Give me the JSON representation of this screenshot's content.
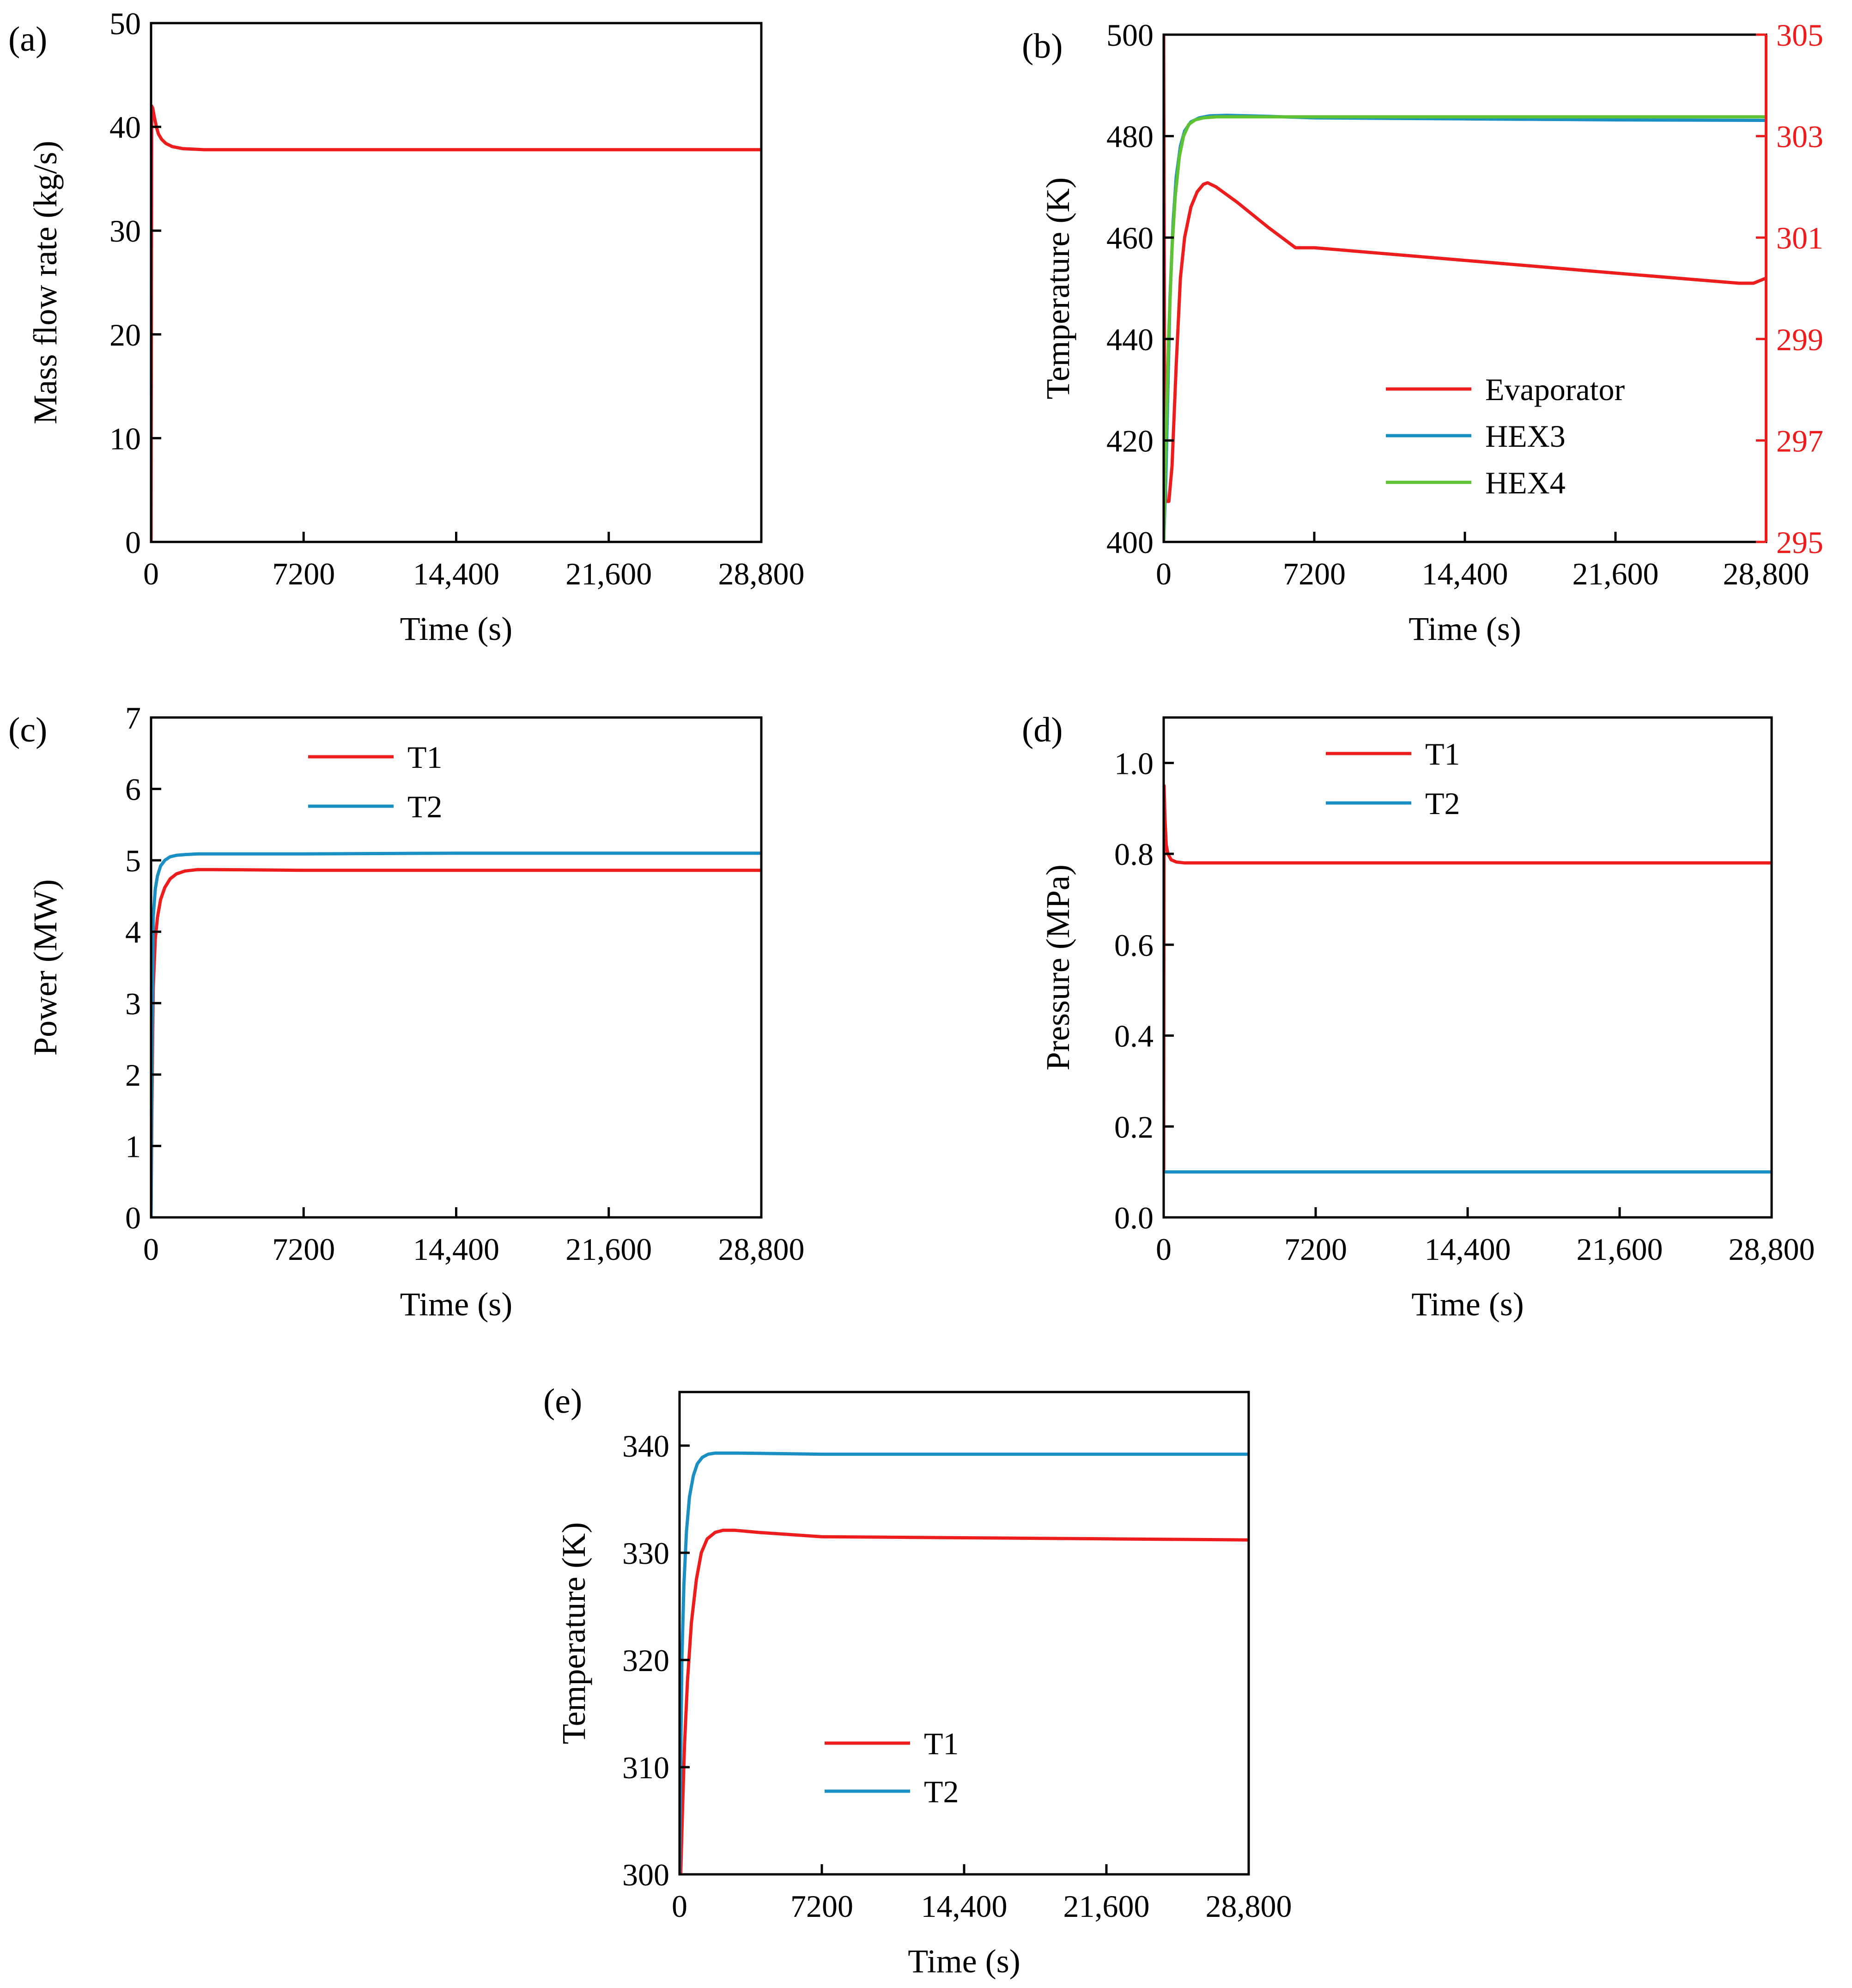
{
  "colors": {
    "red": "#ee1d1d",
    "blue": "#1a8fc4",
    "green": "#5ec233"
  },
  "chart_data": [
    {
      "panel": "(a)",
      "type": "line",
      "xlabel": "Time (s)",
      "ylabel": "Mass flow rate (kg/s)",
      "xlim": [
        0,
        28800
      ],
      "ylim": [
        0,
        50
      ],
      "xticks": [
        0,
        7200,
        14400,
        21600,
        28800
      ],
      "xtick_labels": [
        "0",
        "7200",
        "14,400",
        "21,600",
        "28,800"
      ],
      "yticks": [
        0,
        10,
        20,
        30,
        40,
        50
      ],
      "ytick_labels": [
        "0",
        "10",
        "20",
        "30",
        "40",
        "50"
      ],
      "grid": false,
      "legend": null,
      "series": [
        {
          "color": "#ee1d1d",
          "axis": "left",
          "x": [
            0,
            30,
            80,
            150,
            250,
            350,
            500,
            700,
            1000,
            1500,
            2500,
            4000,
            7200,
            14400,
            21600,
            28800
          ],
          "y": [
            0,
            42.0,
            41.8,
            41.0,
            40.0,
            39.3,
            38.8,
            38.4,
            38.1,
            37.9,
            37.8,
            37.8,
            37.8,
            37.8,
            37.8,
            37.8
          ]
        }
      ]
    },
    {
      "panel": "(b)",
      "type": "line",
      "xlabel": "Time (s)",
      "ylabel": "Temperature (K)",
      "xlim": [
        0,
        28800
      ],
      "ylim": [
        400,
        500
      ],
      "y2lim": [
        295,
        305
      ],
      "y2_color": "#ee1d1d",
      "xticks": [
        0,
        7200,
        14400,
        21600,
        28800
      ],
      "xtick_labels": [
        "0",
        "7200",
        "14,400",
        "21,600",
        "28,800"
      ],
      "yticks": [
        400,
        420,
        440,
        460,
        480,
        500
      ],
      "ytick_labels": [
        "400",
        "420",
        "440",
        "460",
        "480",
        "500"
      ],
      "y2ticks": [
        295,
        297,
        299,
        301,
        303,
        305
      ],
      "y2tick_labels": [
        "295",
        "297",
        "299",
        "301",
        "303",
        "305"
      ],
      "grid": false,
      "legend": "bottom-right",
      "series": [
        {
          "name": "Evaporator",
          "color": "#ee1d1d",
          "axis": "right",
          "x": [
            0,
            50,
            100,
            150,
            250,
            400,
            600,
            800,
            1000,
            1300,
            1600,
            1900,
            2100,
            2500,
            3500,
            5000,
            6300,
            7200,
            14400,
            21600,
            27500,
            28200,
            28800
          ],
          "y": [
            305.0,
            297.0,
            295.8,
            295.8,
            295.8,
            296.5,
            298.5,
            300.2,
            301.0,
            301.6,
            301.9,
            302.05,
            302.08,
            302.0,
            301.7,
            301.2,
            300.8,
            300.8,
            300.55,
            300.3,
            300.1,
            300.1,
            300.2
          ]
        },
        {
          "name": "HEX3",
          "color": "#1a8fc4",
          "axis": "left",
          "x": [
            0,
            100,
            200,
            300,
            450,
            600,
            800,
            1000,
            1300,
            1700,
            2200,
            3000,
            5000,
            7200,
            14400,
            21600,
            28800
          ],
          "y": [
            400,
            412,
            430,
            448,
            463,
            472,
            478,
            481,
            482.8,
            483.6,
            484.0,
            484.1,
            483.9,
            483.6,
            483.4,
            483.2,
            483.1
          ]
        },
        {
          "name": "HEX4",
          "color": "#5ec233",
          "axis": "left",
          "x": [
            0,
            120,
            250,
            400,
            550,
            750,
            950,
            1200,
            1500,
            1900,
            2500,
            3500,
            7200,
            14400,
            21600,
            28800
          ],
          "y": [
            400,
            422,
            442,
            458,
            468,
            476,
            480,
            482.3,
            483.2,
            483.6,
            483.8,
            483.8,
            483.8,
            483.8,
            483.8,
            483.8
          ]
        }
      ]
    },
    {
      "panel": "(c)",
      "type": "line",
      "xlabel": "Time (s)",
      "ylabel": "Power (MW)",
      "xlim": [
        0,
        28800
      ],
      "ylim": [
        0,
        7
      ],
      "xticks": [
        0,
        7200,
        14400,
        21600,
        28800
      ],
      "xtick_labels": [
        "0",
        "7200",
        "14,400",
        "21,600",
        "28,800"
      ],
      "yticks": [
        0,
        1,
        2,
        3,
        4,
        5,
        6,
        7
      ],
      "ytick_labels": [
        "0",
        "1",
        "2",
        "3",
        "4",
        "5",
        "6",
        "7"
      ],
      "grid": false,
      "legend": "top-center",
      "series": [
        {
          "name": "T1",
          "color": "#ee1d1d",
          "axis": "left",
          "x": [
            0,
            40,
            100,
            200,
            300,
            450,
            650,
            900,
            1200,
            1600,
            2200,
            3000,
            7200,
            14400,
            21600,
            28800
          ],
          "y": [
            0,
            1.5,
            3.2,
            3.9,
            4.2,
            4.45,
            4.62,
            4.74,
            4.81,
            4.85,
            4.87,
            4.87,
            4.86,
            4.86,
            4.86,
            4.86
          ]
        },
        {
          "name": "T2",
          "color": "#1a8fc4",
          "axis": "left",
          "x": [
            0,
            40,
            100,
            200,
            300,
            450,
            650,
            900,
            1200,
            1600,
            2200,
            3000,
            7200,
            14400,
            21600,
            28800
          ],
          "y": [
            0,
            2.2,
            4.2,
            4.6,
            4.78,
            4.92,
            5.0,
            5.05,
            5.07,
            5.08,
            5.09,
            5.09,
            5.09,
            5.1,
            5.1,
            5.1
          ]
        }
      ]
    },
    {
      "panel": "(d)",
      "type": "line",
      "xlabel": "Time (s)",
      "ylabel": "Pressure (MPa)",
      "xlim": [
        0,
        28800
      ],
      "ylim": [
        0.0,
        1.1
      ],
      "xticks": [
        0,
        7200,
        14400,
        21600,
        28800
      ],
      "xtick_labels": [
        "0",
        "7200",
        "14,400",
        "21,600",
        "28,800"
      ],
      "yticks": [
        0.0,
        0.2,
        0.4,
        0.6,
        0.8,
        1.0
      ],
      "ytick_labels": [
        "0.0",
        "0.2",
        "0.4",
        "0.6",
        "0.8",
        "1.0"
      ],
      "grid": false,
      "legend": "top-center",
      "series": [
        {
          "name": "T1",
          "color": "#ee1d1d",
          "axis": "left",
          "x": [
            0,
            20,
            60,
            120,
            200,
            350,
            600,
            1000,
            7200,
            14400,
            21600,
            28800
          ],
          "y": [
            0.1,
            0.95,
            0.88,
            0.82,
            0.8,
            0.787,
            0.782,
            0.78,
            0.78,
            0.78,
            0.78,
            0.78
          ]
        },
        {
          "name": "T2",
          "color": "#1a8fc4",
          "axis": "left",
          "x": [
            0,
            7200,
            14400,
            21600,
            28800
          ],
          "y": [
            0.1,
            0.1,
            0.1,
            0.1,
            0.1
          ]
        }
      ]
    },
    {
      "panel": "(e)",
      "type": "line",
      "xlabel": "Time (s)",
      "ylabel": "Temperature (K)",
      "xlim": [
        0,
        28800
      ],
      "ylim": [
        300,
        345
      ],
      "xticks": [
        0,
        7200,
        14400,
        21600,
        28800
      ],
      "xtick_labels": [
        "0",
        "7200",
        "14,400",
        "21,600",
        "28,800"
      ],
      "yticks": [
        300,
        310,
        320,
        330,
        340
      ],
      "ytick_labels": [
        "300",
        "310",
        "320",
        "330",
        "340"
      ],
      "grid": false,
      "legend": "bottom-center",
      "series": [
        {
          "name": "T1",
          "color": "#ee1d1d",
          "axis": "left",
          "x": [
            0,
            60,
            150,
            250,
            400,
            600,
            850,
            1100,
            1400,
            1800,
            2200,
            2800,
            4000,
            7200,
            14400,
            21600,
            28800
          ],
          "y": [
            300,
            300,
            306,
            312,
            318,
            323.5,
            327.5,
            330.0,
            331.3,
            331.9,
            332.1,
            332.1,
            331.9,
            331.5,
            331.4,
            331.3,
            331.2
          ]
        },
        {
          "name": "T2",
          "color": "#1a8fc4",
          "axis": "left",
          "x": [
            0,
            40,
            120,
            220,
            350,
            500,
            700,
            900,
            1150,
            1450,
            1800,
            2300,
            3000,
            7200,
            14400,
            21600,
            28800
          ],
          "y": [
            300,
            308,
            320,
            327,
            332,
            335.2,
            337.2,
            338.3,
            338.9,
            339.2,
            339.3,
            339.3,
            339.3,
            339.2,
            339.2,
            339.2,
            339.2
          ]
        }
      ]
    }
  ]
}
